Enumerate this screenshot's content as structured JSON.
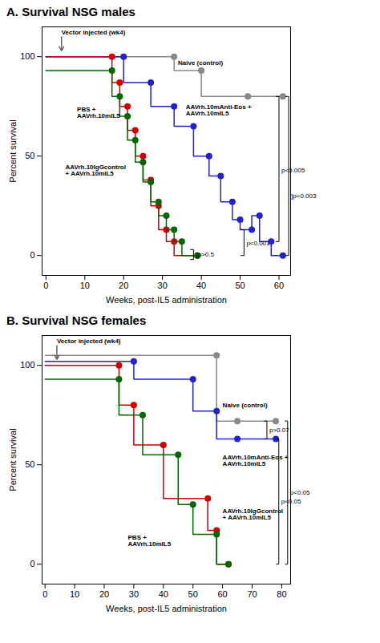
{
  "chart_data": [
    {
      "type": "line",
      "title": "A. Survival NSG males",
      "xlabel": "Weeks, post-IL5 administration",
      "ylabel": "Percent survival",
      "xlim": [
        -1,
        63
      ],
      "ylim": [
        -10,
        115
      ],
      "xticks": [
        0,
        10,
        20,
        30,
        40,
        50,
        60
      ],
      "yticks": [
        0,
        50,
        100
      ],
      "grid": false,
      "series": [
        {
          "color": "#888888",
          "line_style": "step",
          "marker": "circle",
          "x": [
            0,
            33,
            33,
            40,
            40,
            52,
            52,
            61
          ],
          "values": [
            100,
            100,
            93,
            93,
            80,
            80,
            80,
            80
          ],
          "dots": {
            "x": [
              33,
              40,
              52,
              61
            ],
            "values": [
              100,
              93,
              80,
              80
            ]
          }
        },
        {
          "color": "#2222CC",
          "line_style": "step",
          "marker": "circle",
          "x": [
            0,
            20,
            20,
            27,
            27,
            33,
            33,
            38,
            38,
            42,
            42,
            45,
            45,
            48,
            48,
            50,
            50,
            53,
            53,
            55,
            55,
            58,
            58,
            61
          ],
          "values": [
            100,
            100,
            87,
            87,
            75,
            75,
            65,
            65,
            50,
            50,
            40,
            40,
            27,
            27,
            18,
            18,
            13,
            13,
            20,
            20,
            7,
            7,
            0,
            0
          ],
          "dots": {
            "x": [
              20,
              27,
              33,
              38,
              42,
              45,
              48,
              50,
              53,
              55,
              58,
              61
            ],
            "values": [
              100,
              87,
              75,
              65,
              50,
              40,
              27,
              18,
              13,
              20,
              7,
              0
            ]
          }
        },
        {
          "color": "#CC0000",
          "line_style": "step",
          "marker": "circle",
          "x": [
            0,
            17,
            17,
            19,
            19,
            21,
            21,
            23,
            23,
            25,
            25,
            27,
            27,
            29,
            29,
            31,
            31,
            33,
            33,
            39
          ],
          "values": [
            100,
            100,
            87,
            87,
            75,
            75,
            63,
            63,
            50,
            50,
            38,
            38,
            25,
            25,
            13,
            13,
            7,
            7,
            0,
            0
          ],
          "dots": {
            "x": [
              17,
              19,
              21,
              23,
              25,
              27,
              29,
              31,
              33,
              39
            ],
            "values": [
              100,
              87,
              75,
              63,
              50,
              38,
              25,
              13,
              7,
              0
            ]
          }
        },
        {
          "color": "#006600",
          "line_style": "step",
          "marker": "circle",
          "x": [
            0,
            17,
            17,
            19,
            19,
            21,
            21,
            23,
            23,
            25,
            25,
            27,
            27,
            29,
            29,
            31,
            31,
            33,
            33,
            35,
            35,
            39
          ],
          "values": [
            93,
            93,
            80,
            80,
            70,
            70,
            58,
            58,
            47,
            47,
            37,
            37,
            27,
            27,
            20,
            20,
            13,
            13,
            7,
            7,
            0,
            0
          ],
          "dots": {
            "x": [
              17,
              19,
              21,
              23,
              25,
              27,
              29,
              31,
              33,
              35,
              39
            ],
            "values": [
              93,
              80,
              70,
              58,
              47,
              37,
              27,
              20,
              13,
              7,
              0
            ]
          }
        }
      ],
      "annotations": [
        {
          "text": "Vector injected (wk4)",
          "x": 4,
          "y": 111,
          "arrow": {
            "x1": 4,
            "y1": 110,
            "x2": 4,
            "y2": 103
          }
        },
        {
          "text": "Naive (control)",
          "x": 34,
          "y": 97
        },
        {
          "text": "PBS +\nAAVrh.10mIL5",
          "x": 8,
          "y": 72
        },
        {
          "text": "AAVrh.10IgGcontrol\n+ AAVrh.10mIL5",
          "x": 5,
          "y": 43
        },
        {
          "text": "AAVrh.10mAnti-Eos +\nAAVrh.10mIL5",
          "x": 36,
          "y": 73
        }
      ],
      "brackets": [
        {
          "text": "]p>0.5",
          "x": 38,
          "y1": -2,
          "y2": 3,
          "text_y": 0.5
        },
        {
          "text": "p<0.001",
          "x": 51,
          "y1": 0,
          "y2": 13,
          "text_y": 6
        },
        {
          "text": "p<0.005",
          "x": 60,
          "y1": 7,
          "y2": 80,
          "text_y": 43
        },
        {
          "text": "]p<0.003",
          "x": 62.5,
          "y1": 0,
          "y2": 80,
          "text_y": 30
        }
      ]
    },
    {
      "type": "line",
      "title": "B. Survival NSG females",
      "xlabel": "Weeks, post-IL5 administration",
      "ylabel": "Percent survival",
      "xlim": [
        -1,
        83
      ],
      "ylim": [
        -10,
        115
      ],
      "xticks": [
        0,
        10,
        20,
        30,
        40,
        50,
        60,
        70,
        80
      ],
      "yticks": [
        0,
        50,
        100
      ],
      "grid": false,
      "series": [
        {
          "color": "#888888",
          "line_style": "step",
          "marker": "circle",
          "x": [
            0,
            58,
            58,
            65,
            65,
            78
          ],
          "values": [
            105,
            105,
            72,
            72,
            72,
            72
          ],
          "dots": {
            "x": [
              58,
              65,
              78
            ],
            "values": [
              105,
              72,
              72
            ]
          }
        },
        {
          "color": "#2222CC",
          "line_style": "step",
          "marker": "circle",
          "x": [
            0,
            30,
            30,
            50,
            50,
            58,
            58,
            65,
            65,
            78
          ],
          "values": [
            102,
            102,
            93,
            93,
            77,
            77,
            63,
            63,
            63,
            63
          ],
          "dots": {
            "x": [
              30,
              50,
              58,
              65,
              78
            ],
            "values": [
              102,
              93,
              77,
              63,
              63
            ]
          }
        },
        {
          "color": "#CC0000",
          "line_style": "step",
          "marker": "circle",
          "x": [
            0,
            25,
            25,
            30,
            30,
            40,
            40,
            55,
            55,
            58,
            58,
            62
          ],
          "values": [
            100,
            100,
            80,
            80,
            60,
            60,
            33,
            33,
            17,
            17,
            0,
            0
          ],
          "dots": {
            "x": [
              25,
              30,
              40,
              55,
              58,
              62
            ],
            "values": [
              100,
              80,
              60,
              33,
              17,
              0
            ]
          }
        },
        {
          "color": "#006600",
          "line_style": "step",
          "marker": "circle",
          "x": [
            0,
            25,
            25,
            33,
            33,
            45,
            45,
            50,
            50,
            58,
            58,
            62
          ],
          "values": [
            93,
            93,
            75,
            75,
            55,
            55,
            30,
            30,
            15,
            15,
            0,
            0
          ],
          "dots": {
            "x": [
              25,
              33,
              45,
              50,
              58,
              62
            ],
            "values": [
              93,
              75,
              55,
              30,
              15,
              0
            ]
          }
        }
      ],
      "annotations": [
        {
          "text": "Vector injected (wk4)",
          "x": 4,
          "y": 111,
          "arrow": {
            "x1": 4,
            "y1": 110,
            "x2": 4,
            "y2": 103
          }
        },
        {
          "text": "Naive (control)",
          "x": 60,
          "y": 80
        },
        {
          "text": "PBS +\nAAVrh.10mIL5",
          "x": 28,
          "y": 12
        },
        {
          "text": "AAVrh.10IgGcontrol\n+ AAVrh.10mIL5",
          "x": 60,
          "y": 25
        },
        {
          "text": "AAVrh.10mAnti-Eos +\nAAVrh.10mIL5",
          "x": 60,
          "y": 52
        }
      ],
      "brackets": [
        {
          "text": "p>0.07",
          "x": 75,
          "y1": 63,
          "y2": 72,
          "text_y": 67.5
        },
        {
          "text": "p<0.05",
          "x": 79,
          "y1": 0,
          "y2": 63,
          "text_y": 31.5
        },
        {
          "text": "p<0.05",
          "x": 82,
          "y1": 0,
          "y2": 72,
          "text_y": 36
        }
      ]
    }
  ]
}
